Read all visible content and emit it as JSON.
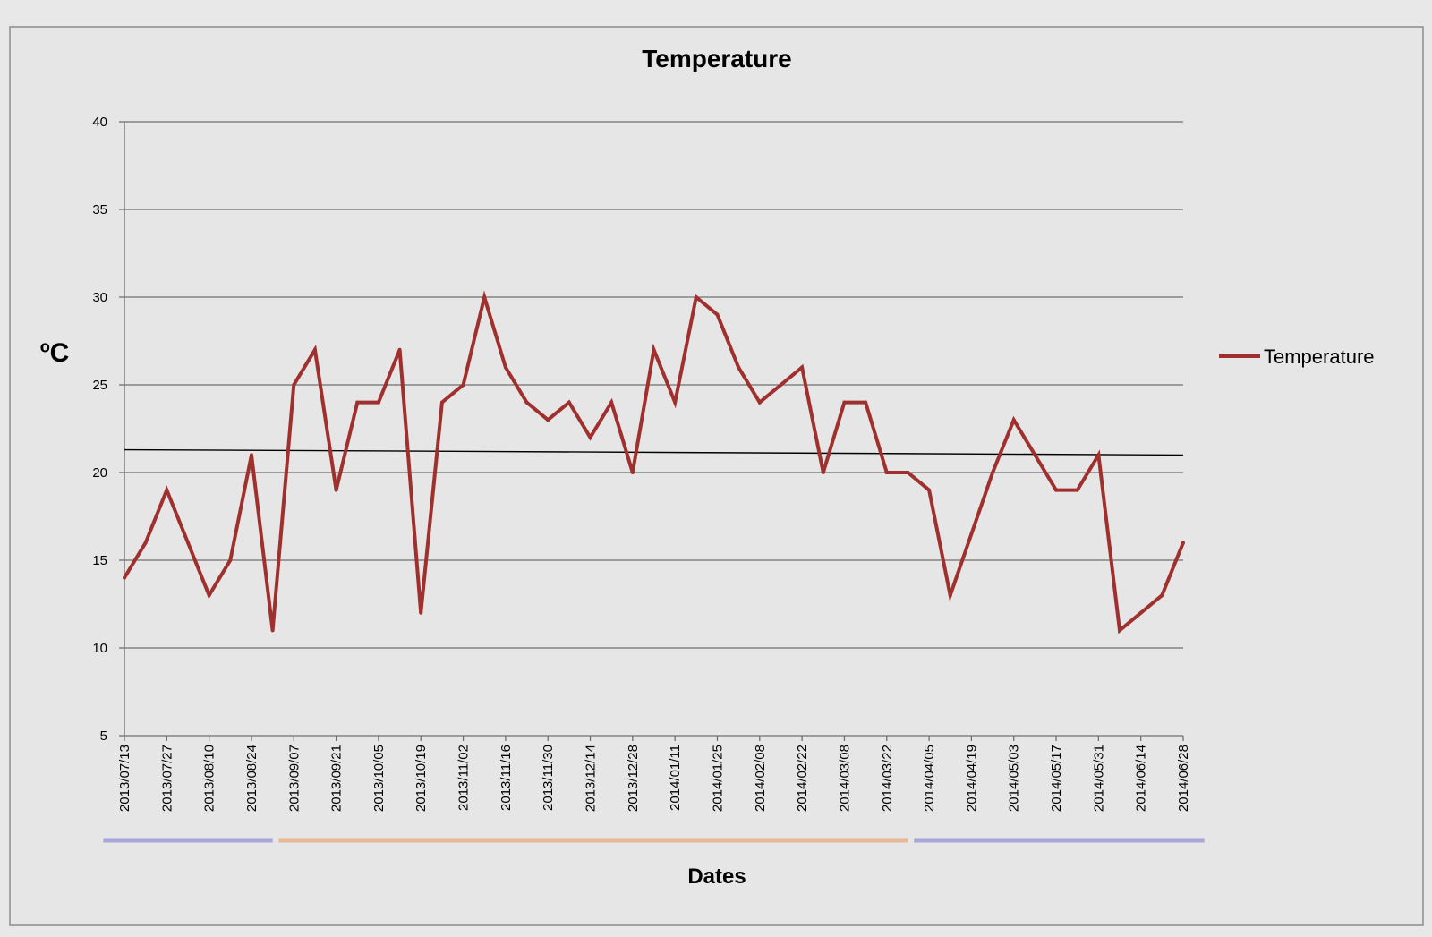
{
  "chart_data": {
    "type": "line",
    "title": "Temperature",
    "xlabel": "Dates",
    "ylabel": "ºC",
    "ylim": [
      5,
      40
    ],
    "yticks": [
      5,
      10,
      15,
      20,
      25,
      30,
      35,
      40
    ],
    "grid": true,
    "legend_position": "right",
    "x_tick_labels": [
      "2013/07/13",
      "2013/07/27",
      "2013/08/10",
      "2013/08/24",
      "2013/09/07",
      "2013/09/21",
      "2013/10/05",
      "2013/10/19",
      "2013/11/02",
      "2013/11/16",
      "2013/11/30",
      "2013/12/14",
      "2013/12/28",
      "2014/01/11",
      "2014/01/25",
      "2014/02/08",
      "2014/02/22",
      "2014/03/08",
      "2014/03/22",
      "2014/04/05",
      "2014/04/19",
      "2014/05/03",
      "2014/05/17",
      "2014/05/31",
      "2014/06/14",
      "2014/06/28"
    ],
    "series": [
      {
        "name": "Temperature",
        "color": "#a0302e",
        "x": [
          "2013/07/13",
          "2013/07/20",
          "2013/07/27",
          "2013/08/03",
          "2013/08/10",
          "2013/08/17",
          "2013/08/24",
          "2013/08/31",
          "2013/09/07",
          "2013/09/14",
          "2013/09/21",
          "2013/09/28",
          "2013/10/05",
          "2013/10/12",
          "2013/10/19",
          "2013/10/26",
          "2013/11/02",
          "2013/11/09",
          "2013/11/16",
          "2013/11/23",
          "2013/11/30",
          "2013/12/07",
          "2013/12/14",
          "2013/12/21",
          "2013/12/28",
          "2014/01/04",
          "2014/01/11",
          "2014/01/18",
          "2014/01/25",
          "2014/02/01",
          "2014/02/08",
          "2014/02/15",
          "2014/02/22",
          "2014/03/01",
          "2014/03/08",
          "2014/03/15",
          "2014/03/22",
          "2014/03/29",
          "2014/04/05",
          "2014/04/12",
          "2014/04/19",
          "2014/04/26",
          "2014/05/03",
          "2014/05/10",
          "2014/05/17",
          "2014/05/24",
          "2014/05/31",
          "2014/06/07",
          "2014/06/14",
          "2014/06/21",
          "2014/06/28"
        ],
        "values": [
          14,
          16,
          19,
          16,
          13,
          15,
          21,
          11,
          25,
          27,
          19,
          24,
          24,
          27,
          12,
          24,
          25,
          30,
          26,
          24,
          23,
          24,
          22,
          24,
          20,
          27,
          24,
          30,
          29,
          26,
          24,
          25,
          26,
          20,
          24,
          24,
          20,
          20,
          19,
          13,
          16.5,
          20,
          23,
          21,
          19,
          19,
          21,
          11,
          12,
          13,
          16
        ]
      }
    ],
    "trendline": {
      "color": "#000000",
      "start": 21.3,
      "end": 21.0
    },
    "period_bars": [
      {
        "from": "2013/07/06",
        "to": "2013/08/31",
        "color": "#a9a6dc"
      },
      {
        "from": "2013/09/02",
        "to": "2014/03/29",
        "color": "#e8b898"
      },
      {
        "from": "2014/03/31",
        "to": "2014/07/05",
        "color": "#a9a6dc"
      }
    ]
  }
}
